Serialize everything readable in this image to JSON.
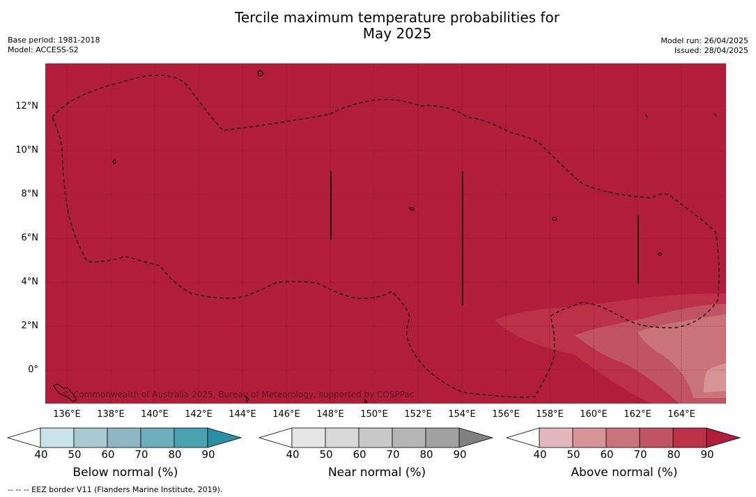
{
  "title_line1": "Tercile maximum temperature probabilities for",
  "title_line2": "May 2025",
  "meta_left": {
    "base_period": "Base period: 1981-2018",
    "model": "Model: ACCESS-S2"
  },
  "meta_right": {
    "model_run": "Model run: 26/04/2025",
    "issued": "Issued: 28/04/2025"
  },
  "map": {
    "background_color": "#b11e3b",
    "lon_ticks": [
      "136°E",
      "138°E",
      "140°E",
      "142°E",
      "144°E",
      "146°E",
      "148°E",
      "150°E",
      "152°E",
      "154°E",
      "156°E",
      "158°E",
      "160°E",
      "162°E",
      "164°E"
    ],
    "lat_ticks": [
      "12°N",
      "10°N",
      "8°N",
      "6°N",
      "4°N",
      "2°N",
      "0°"
    ],
    "copyright": "© Commonwealth of Australia 2025, Bureau of Meteorology, supported by COSPPac",
    "eez_line_style": "dashed"
  },
  "colorbars": [
    {
      "label": "Below normal (%)",
      "ticks": [
        "40",
        "50",
        "60",
        "70",
        "80",
        "90"
      ],
      "colors": [
        "#ffffff",
        "#c9e1e8",
        "#a9c9d0",
        "#8cb6c1",
        "#6caebb",
        "#4aa2b1",
        "#2a8fa3"
      ]
    },
    {
      "label": "Near normal (%)",
      "ticks": [
        "40",
        "50",
        "60",
        "70",
        "80",
        "90"
      ],
      "colors": [
        "#ffffff",
        "#e6e6e6",
        "#d8d8d8",
        "#c8c8c8",
        "#b5b5b5",
        "#a1a1a1",
        "#808080"
      ]
    },
    {
      "label": "Above normal (%)",
      "ticks": [
        "40",
        "50",
        "60",
        "70",
        "80",
        "90"
      ],
      "colors": [
        "#ffffff",
        "#e3b7bd",
        "#d69499",
        "#ca7379",
        "#c05462",
        "#bc3048",
        "#b11e3b"
      ]
    }
  ],
  "footer": "--  --  -- EEZ border V11 (Flanders Marine Institute, 2019)."
}
